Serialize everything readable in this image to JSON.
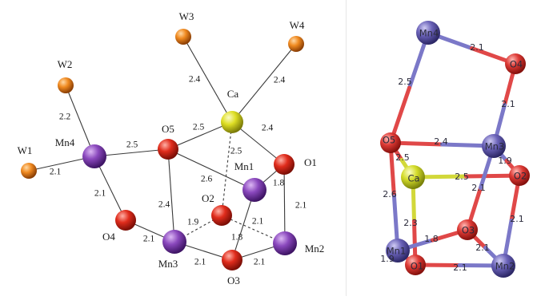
{
  "left": {
    "atoms": [
      {
        "id": "W3",
        "label": "W3",
        "type": "W"
      },
      {
        "id": "W4",
        "label": "W4",
        "type": "W"
      },
      {
        "id": "W2",
        "label": "W2",
        "type": "W"
      },
      {
        "id": "W1",
        "label": "W1",
        "type": "W"
      },
      {
        "id": "Ca",
        "label": "Ca",
        "type": "Ca"
      },
      {
        "id": "Mn4",
        "label": "Mn4",
        "type": "Mn"
      },
      {
        "id": "O5",
        "label": "O5",
        "type": "O"
      },
      {
        "id": "Mn1",
        "label": "Mn1",
        "type": "Mn"
      },
      {
        "id": "O1",
        "label": "O1",
        "type": "O"
      },
      {
        "id": "O2",
        "label": "O2",
        "type": "O"
      },
      {
        "id": "O4",
        "label": "O4",
        "type": "O"
      },
      {
        "id": "Mn3",
        "label": "Mn3",
        "type": "Mn"
      },
      {
        "id": "O3",
        "label": "O3",
        "type": "O"
      },
      {
        "id": "Mn2",
        "label": "Mn2",
        "type": "Mn"
      }
    ],
    "bonds": [
      {
        "a": "Ca",
        "b": "W3",
        "length": "2.4",
        "style": "solid"
      },
      {
        "a": "Ca",
        "b": "W4",
        "length": "2.4",
        "style": "solid"
      },
      {
        "a": "Mn4",
        "b": "W2",
        "length": "2.2",
        "style": "solid"
      },
      {
        "a": "Mn4",
        "b": "W1",
        "length": "2.1",
        "style": "solid"
      },
      {
        "a": "Mn4",
        "b": "O5",
        "length": "2.5",
        "style": "solid"
      },
      {
        "a": "O5",
        "b": "Ca",
        "length": "2.5",
        "style": "solid"
      },
      {
        "a": "Ca",
        "b": "O1",
        "length": "2.4",
        "style": "solid"
      },
      {
        "a": "Ca",
        "b": "O2",
        "length": "2.5",
        "style": "dashed"
      },
      {
        "a": "O5",
        "b": "Mn1",
        "length": "2.6",
        "style": "solid"
      },
      {
        "a": "Mn1",
        "b": "O1",
        "length": "1.8",
        "style": "solid"
      },
      {
        "a": "O1",
        "b": "Mn2",
        "length": "2.1",
        "style": "solid"
      },
      {
        "a": "Mn4",
        "b": "O4",
        "length": "2.1",
        "style": "solid"
      },
      {
        "a": "O5",
        "b": "Mn3",
        "length": "2.4",
        "style": "solid"
      },
      {
        "a": "O4",
        "b": "Mn3",
        "length": "2.1",
        "style": "solid"
      },
      {
        "a": "Mn3",
        "b": "O2",
        "length": "1.9",
        "style": "dashed"
      },
      {
        "a": "O2",
        "b": "Mn2",
        "length": "2.1",
        "style": "dashed"
      },
      {
        "a": "Mn1",
        "b": "O3",
        "length": "1.8",
        "style": "solid"
      },
      {
        "a": "Mn3",
        "b": "O3",
        "length": "2.1",
        "style": "solid"
      },
      {
        "a": "O3",
        "b": "Mn2",
        "length": "2.1",
        "style": "solid"
      }
    ]
  },
  "right": {
    "atoms": [
      {
        "id": "Mn4",
        "label": "Mn4",
        "type": "Mn"
      },
      {
        "id": "O4",
        "label": "O4",
        "type": "O"
      },
      {
        "id": "O5",
        "label": "O5",
        "type": "O"
      },
      {
        "id": "Mn3",
        "label": "Mn3",
        "type": "Mn"
      },
      {
        "id": "Ca",
        "label": "Ca",
        "type": "Ca"
      },
      {
        "id": "O2",
        "label": "O2",
        "type": "O"
      },
      {
        "id": "O3",
        "label": "O3",
        "type": "O"
      },
      {
        "id": "Mn1",
        "label": "Mn1",
        "type": "Mn"
      },
      {
        "id": "O1",
        "label": "O1",
        "type": "O"
      },
      {
        "id": "Mn2",
        "label": "Mn2",
        "type": "Mn"
      }
    ],
    "bonds": [
      {
        "a": "Mn4",
        "b": "O4",
        "length": "2.1"
      },
      {
        "a": "Mn4",
        "b": "O5",
        "length": "2.5"
      },
      {
        "a": "O4",
        "b": "Mn3",
        "length": "2.1"
      },
      {
        "a": "O5",
        "b": "Mn3",
        "length": "2.4"
      },
      {
        "a": "Mn3",
        "b": "O2",
        "length": "1.9"
      },
      {
        "a": "O5",
        "b": "Ca",
        "length": "2.5"
      },
      {
        "a": "Ca",
        "b": "O2",
        "length": "2.5"
      },
      {
        "a": "O5",
        "b": "Mn1",
        "length": "2.6"
      },
      {
        "a": "Ca",
        "b": "O1",
        "length": "2.3"
      },
      {
        "a": "O3",
        "b": "Mn3",
        "length": "2.1"
      },
      {
        "a": "O2",
        "b": "Mn2",
        "length": "2.1"
      },
      {
        "a": "Mn1",
        "b": "O3",
        "length": "1.8"
      },
      {
        "a": "O3",
        "b": "Mn2",
        "length": "2.1"
      },
      {
        "a": "Mn1",
        "b": "O1",
        "length": "1.9"
      },
      {
        "a": "O1",
        "b": "Mn2",
        "length": "2.1"
      }
    ]
  },
  "colors": {
    "W": "#e8780e",
    "O": "#e02c1c",
    "Mn": "#7d3fae",
    "Ca": "#d6d61e",
    "right_Mn": "#6a62b8",
    "right_O": "#dd3a35",
    "right_Ca": "#d4dc2a",
    "right_bond_Mn": "#7b78c8",
    "right_bond_O": "#e04848",
    "right_bond_Ca": "#d2d83a"
  }
}
